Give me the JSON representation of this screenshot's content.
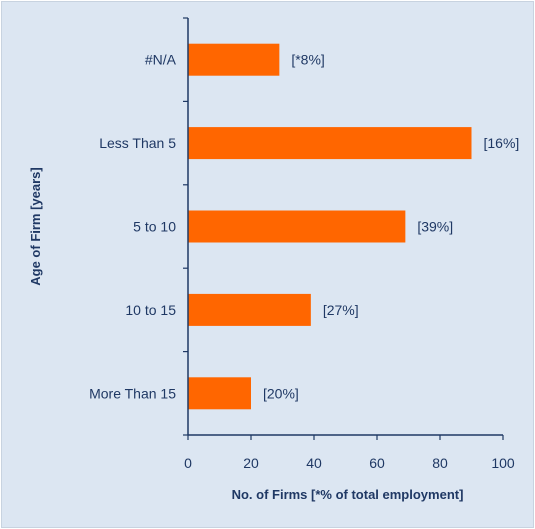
{
  "chart_data": {
    "type": "bar",
    "orientation": "horizontal",
    "categories": [
      "#N/A",
      "Less Than 5",
      "5 to 10",
      "10 to 15",
      "More Than 15"
    ],
    "values": [
      29,
      90,
      69,
      39,
      20
    ],
    "data_labels": [
      "[*8%]",
      "[16%]",
      "[39%]",
      "[27%]",
      "[20%]"
    ],
    "xlabel": "No. of Firms [*% of total employment]",
    "ylabel": "Age of Firm [years]",
    "xlim": [
      0,
      100
    ],
    "xticks": [
      0,
      20,
      40,
      60,
      80,
      100
    ],
    "grid": false,
    "legend": "none",
    "colors": {
      "bar": "#ff6600",
      "axis": "#1f3864",
      "background": "#dce6f2"
    }
  }
}
